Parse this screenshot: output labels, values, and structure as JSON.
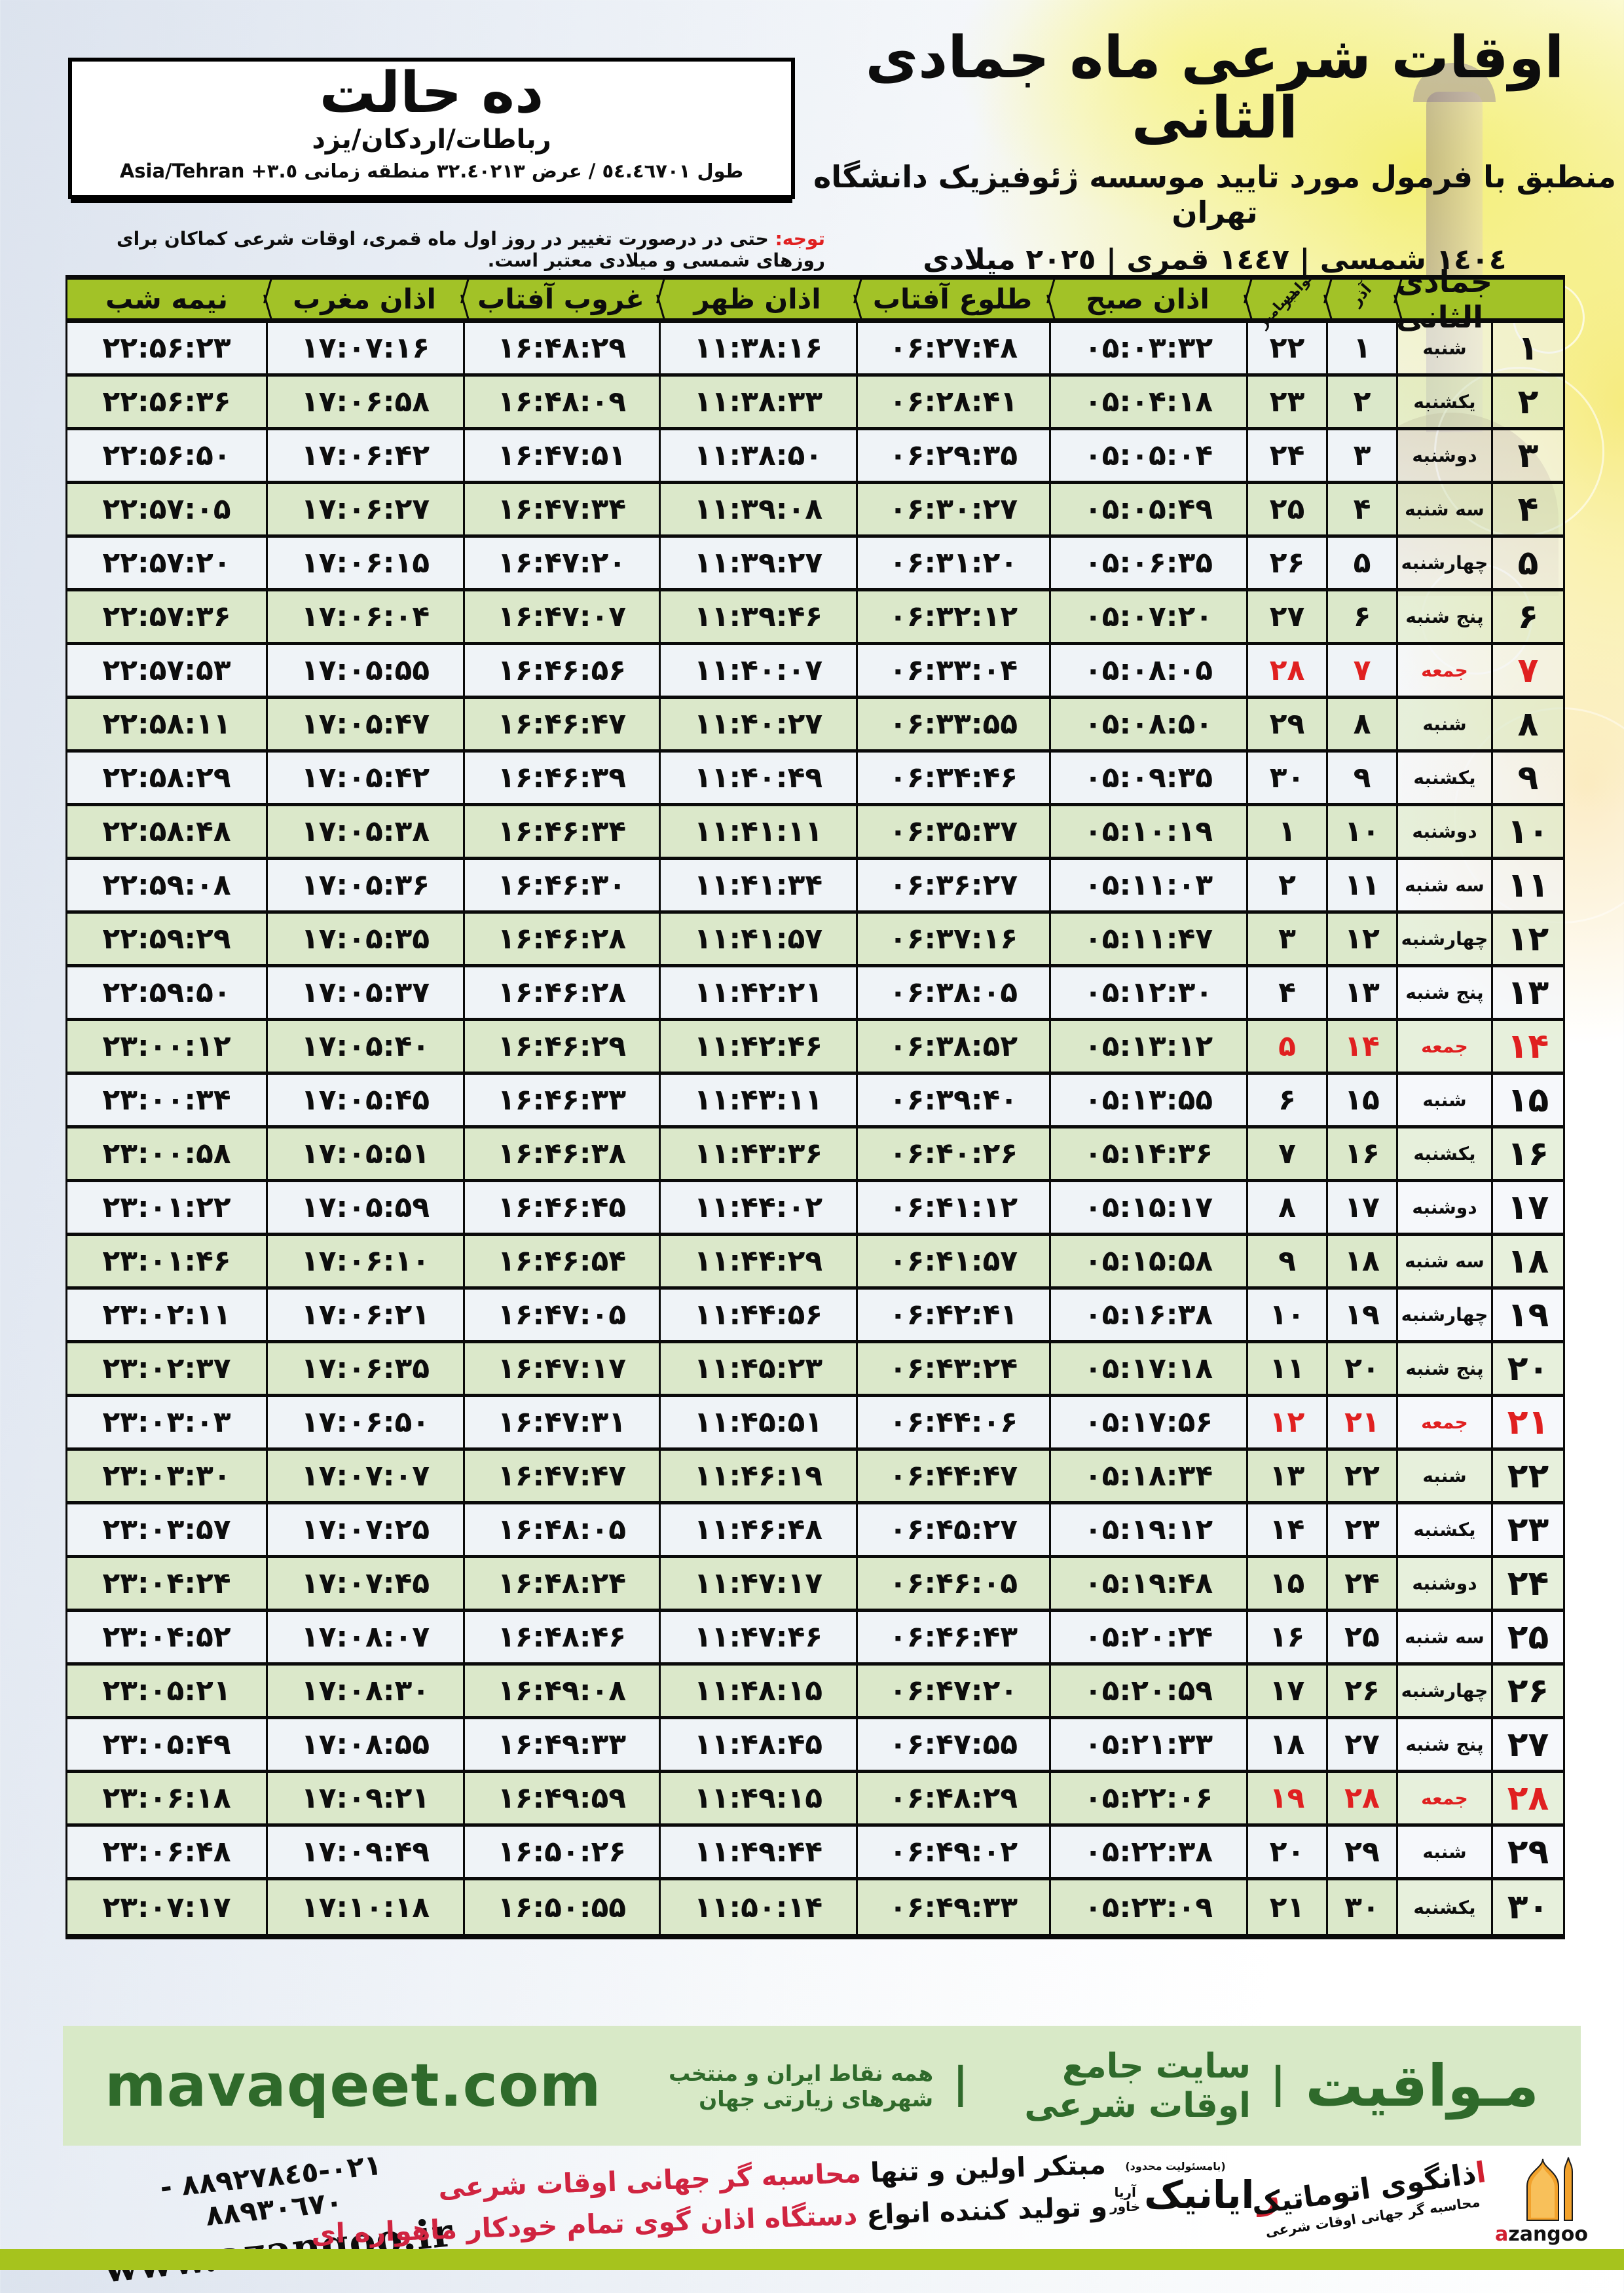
{
  "title_block": {
    "line1": "اوقات شرعی ماه جمادی الثانی",
    "line2": "منطبق با فرمول مورد تایید موسسه ژئوفیزیک دانشگاه تهران",
    "line3": "١٤٠٤ شمسی | ١٤٤٧ قمری | ٢٠٢٥ میلادی"
  },
  "info_box": {
    "title": "ده حالت",
    "locations": "رباطات/اردکان/یزد",
    "coords_fa": "طول ٥٤.٤٦٧٠١ / عرض ٣٢.٤٠٢١٣ منطقه زمانی",
    "coords_tz": "Asia/Tehran +٣.٥"
  },
  "note": {
    "label": "توجه:",
    "body": " حتی در درصورت تغییر در روز اول ماه قمری، اوقات شرعی کماکان برای روزهای شمسی و میلادی معتبر است."
  },
  "table": {
    "headers": {
      "midnight": "نیمه شب",
      "maghrib": "اذان مغرب",
      "sunset": "غروب آفتاب",
      "noon": "اذان ظهر",
      "sunrise": "طلوع آفتاب",
      "fajr": "اذان صبح",
      "gregorian_top": "نوامبر",
      "gregorian_bottom": "دسامبر",
      "azar": "آذر",
      "month": "جمادی الثانی"
    },
    "rows": [
      {
        "day": 1,
        "weekday": "شنبه",
        "gregorian": 22,
        "azar": 1,
        "friday": false,
        "fajr": "05:03:32",
        "sunrise": "06:27:48",
        "noon": "11:38:16",
        "sunset": "16:48:29",
        "maghrib": "17:07:16",
        "midnight": "22:56:23"
      },
      {
        "day": 2,
        "weekday": "یکشنبه",
        "gregorian": 23,
        "azar": 2,
        "friday": false,
        "fajr": "05:04:18",
        "sunrise": "06:28:41",
        "noon": "11:38:33",
        "sunset": "16:48:09",
        "maghrib": "17:06:58",
        "midnight": "22:56:36"
      },
      {
        "day": 3,
        "weekday": "دوشنبه",
        "gregorian": 24,
        "azar": 3,
        "friday": false,
        "fajr": "05:05:04",
        "sunrise": "06:29:35",
        "noon": "11:38:50",
        "sunset": "16:47:51",
        "maghrib": "17:06:42",
        "midnight": "22:56:50"
      },
      {
        "day": 4,
        "weekday": "سه شنبه",
        "gregorian": 25,
        "azar": 4,
        "friday": false,
        "fajr": "05:05:49",
        "sunrise": "06:30:27",
        "noon": "11:39:08",
        "sunset": "16:47:34",
        "maghrib": "17:06:27",
        "midnight": "22:57:05"
      },
      {
        "day": 5,
        "weekday": "چهارشنبه",
        "gregorian": 26,
        "azar": 5,
        "friday": false,
        "fajr": "05:06:35",
        "sunrise": "06:31:20",
        "noon": "11:39:27",
        "sunset": "16:47:20",
        "maghrib": "17:06:15",
        "midnight": "22:57:20"
      },
      {
        "day": 6,
        "weekday": "پنج شنبه",
        "gregorian": 27,
        "azar": 6,
        "friday": false,
        "fajr": "05:07:20",
        "sunrise": "06:32:12",
        "noon": "11:39:46",
        "sunset": "16:47:07",
        "maghrib": "17:06:04",
        "midnight": "22:57:36"
      },
      {
        "day": 7,
        "weekday": "جمعه",
        "gregorian": 28,
        "azar": 7,
        "friday": true,
        "fajr": "05:08:05",
        "sunrise": "06:33:04",
        "noon": "11:40:07",
        "sunset": "16:46:56",
        "maghrib": "17:05:55",
        "midnight": "22:57:53"
      },
      {
        "day": 8,
        "weekday": "شنبه",
        "gregorian": 29,
        "azar": 8,
        "friday": false,
        "fajr": "05:08:50",
        "sunrise": "06:33:55",
        "noon": "11:40:27",
        "sunset": "16:46:47",
        "maghrib": "17:05:47",
        "midnight": "22:58:11"
      },
      {
        "day": 9,
        "weekday": "یکشنبه",
        "gregorian": 30,
        "azar": 9,
        "friday": false,
        "fajr": "05:09:35",
        "sunrise": "06:34:46",
        "noon": "11:40:49",
        "sunset": "16:46:39",
        "maghrib": "17:05:42",
        "midnight": "22:58:29"
      },
      {
        "day": 10,
        "weekday": "دوشنبه",
        "gregorian": 1,
        "azar": 10,
        "friday": false,
        "fajr": "05:10:19",
        "sunrise": "06:35:37",
        "noon": "11:41:11",
        "sunset": "16:46:34",
        "maghrib": "17:05:38",
        "midnight": "22:58:48"
      },
      {
        "day": 11,
        "weekday": "سه شنبه",
        "gregorian": 2,
        "azar": 11,
        "friday": false,
        "fajr": "05:11:03",
        "sunrise": "06:36:27",
        "noon": "11:41:34",
        "sunset": "16:46:30",
        "maghrib": "17:05:36",
        "midnight": "22:59:08"
      },
      {
        "day": 12,
        "weekday": "چهارشنبه",
        "gregorian": 3,
        "azar": 12,
        "friday": false,
        "fajr": "05:11:47",
        "sunrise": "06:37:16",
        "noon": "11:41:57",
        "sunset": "16:46:28",
        "maghrib": "17:05:35",
        "midnight": "22:59:29"
      },
      {
        "day": 13,
        "weekday": "پنج شنبه",
        "gregorian": 4,
        "azar": 13,
        "friday": false,
        "fajr": "05:12:30",
        "sunrise": "06:38:05",
        "noon": "11:42:21",
        "sunset": "16:46:28",
        "maghrib": "17:05:37",
        "midnight": "22:59:50"
      },
      {
        "day": 14,
        "weekday": "جمعه",
        "gregorian": 5,
        "azar": 14,
        "friday": true,
        "fajr": "05:13:12",
        "sunrise": "06:38:52",
        "noon": "11:42:46",
        "sunset": "16:46:29",
        "maghrib": "17:05:40",
        "midnight": "23:00:12"
      },
      {
        "day": 15,
        "weekday": "شنبه",
        "gregorian": 6,
        "azar": 15,
        "friday": false,
        "fajr": "05:13:55",
        "sunrise": "06:39:40",
        "noon": "11:43:11",
        "sunset": "16:46:33",
        "maghrib": "17:05:45",
        "midnight": "23:00:34"
      },
      {
        "day": 16,
        "weekday": "یکشنبه",
        "gregorian": 7,
        "azar": 16,
        "friday": false,
        "fajr": "05:14:36",
        "sunrise": "06:40:26",
        "noon": "11:43:36",
        "sunset": "16:46:38",
        "maghrib": "17:05:51",
        "midnight": "23:00:58"
      },
      {
        "day": 17,
        "weekday": "دوشنبه",
        "gregorian": 8,
        "azar": 17,
        "friday": false,
        "fajr": "05:15:17",
        "sunrise": "06:41:12",
        "noon": "11:44:02",
        "sunset": "16:46:45",
        "maghrib": "17:05:59",
        "midnight": "23:01:22"
      },
      {
        "day": 18,
        "weekday": "سه شنبه",
        "gregorian": 9,
        "azar": 18,
        "friday": false,
        "fajr": "05:15:58",
        "sunrise": "06:41:57",
        "noon": "11:44:29",
        "sunset": "16:46:54",
        "maghrib": "17:06:10",
        "midnight": "23:01:46"
      },
      {
        "day": 19,
        "weekday": "چهارشنبه",
        "gregorian": 10,
        "azar": 19,
        "friday": false,
        "fajr": "05:16:38",
        "sunrise": "06:42:41",
        "noon": "11:44:56",
        "sunset": "16:47:05",
        "maghrib": "17:06:21",
        "midnight": "23:02:11"
      },
      {
        "day": 20,
        "weekday": "پنج شنبه",
        "gregorian": 11,
        "azar": 20,
        "friday": false,
        "fajr": "05:17:18",
        "sunrise": "06:43:24",
        "noon": "11:45:23",
        "sunset": "16:47:17",
        "maghrib": "17:06:35",
        "midnight": "23:02:37"
      },
      {
        "day": 21,
        "weekday": "جمعه",
        "gregorian": 12,
        "azar": 21,
        "friday": true,
        "fajr": "05:17:56",
        "sunrise": "06:44:06",
        "noon": "11:45:51",
        "sunset": "16:47:31",
        "maghrib": "17:06:50",
        "midnight": "23:03:03"
      },
      {
        "day": 22,
        "weekday": "شنبه",
        "gregorian": 13,
        "azar": 22,
        "friday": false,
        "fajr": "05:18:34",
        "sunrise": "06:44:47",
        "noon": "11:46:19",
        "sunset": "16:47:47",
        "maghrib": "17:07:07",
        "midnight": "23:03:30"
      },
      {
        "day": 23,
        "weekday": "یکشنبه",
        "gregorian": 14,
        "azar": 23,
        "friday": false,
        "fajr": "05:19:12",
        "sunrise": "06:45:27",
        "noon": "11:46:48",
        "sunset": "16:48:05",
        "maghrib": "17:07:25",
        "midnight": "23:03:57"
      },
      {
        "day": 24,
        "weekday": "دوشنبه",
        "gregorian": 15,
        "azar": 24,
        "friday": false,
        "fajr": "05:19:48",
        "sunrise": "06:46:05",
        "noon": "11:47:17",
        "sunset": "16:48:24",
        "maghrib": "17:07:45",
        "midnight": "23:04:24"
      },
      {
        "day": 25,
        "weekday": "سه شنبه",
        "gregorian": 16,
        "azar": 25,
        "friday": false,
        "fajr": "05:20:24",
        "sunrise": "06:46:43",
        "noon": "11:47:46",
        "sunset": "16:48:46",
        "maghrib": "17:08:07",
        "midnight": "23:04:52"
      },
      {
        "day": 26,
        "weekday": "چهارشنبه",
        "gregorian": 17,
        "azar": 26,
        "friday": false,
        "fajr": "05:20:59",
        "sunrise": "06:47:20",
        "noon": "11:48:15",
        "sunset": "16:49:08",
        "maghrib": "17:08:30",
        "midnight": "23:05:21"
      },
      {
        "day": 27,
        "weekday": "پنج شنبه",
        "gregorian": 18,
        "azar": 27,
        "friday": false,
        "fajr": "05:21:33",
        "sunrise": "06:47:55",
        "noon": "11:48:45",
        "sunset": "16:49:33",
        "maghrib": "17:08:55",
        "midnight": "23:05:49"
      },
      {
        "day": 28,
        "weekday": "جمعه",
        "gregorian": 19,
        "azar": 28,
        "friday": true,
        "fajr": "05:22:06",
        "sunrise": "06:48:29",
        "noon": "11:49:15",
        "sunset": "16:49:59",
        "maghrib": "17:09:21",
        "midnight": "23:06:18"
      },
      {
        "day": 29,
        "weekday": "شنبه",
        "gregorian": 20,
        "azar": 29,
        "friday": false,
        "fajr": "05:22:38",
        "sunrise": "06:49:02",
        "noon": "11:49:44",
        "sunset": "16:50:26",
        "maghrib": "17:09:49",
        "midnight": "23:06:48"
      },
      {
        "day": 30,
        "weekday": "یکشنبه",
        "gregorian": 21,
        "azar": 30,
        "friday": false,
        "fajr": "05:23:09",
        "sunrise": "06:49:33",
        "noon": "11:50:14",
        "sunset": "16:50:55",
        "maghrib": "17:10:18",
        "midnight": "23:07:17"
      }
    ]
  },
  "footer_band": {
    "site_name": "مـواقیت",
    "sep": "|",
    "tagline1": "سایت جامع اوقات شرعی",
    "tagline2": "همه نقاط ایران و منتخب شهرهای زیارتی جهان",
    "domain": "mavaqeet.com"
  },
  "footer_bottom": {
    "phones": "٠٢١-٨٨٩٢٧٨٤٥ - ٨٨٩٣٠٦٧٠",
    "website": "www.azangoo.ir",
    "line1_black": "مبتکر اولین و تنها ",
    "line1_red": "محاسبه گر جهانی اوقات شرعی",
    "line2_black": "و تولید کننده انواع ",
    "line2_red": "دستگاه اذان گوی تمام خودکار ماهواره ای",
    "rayanik_llc": "(بامسئولیت محدود)",
    "rayanik_first": "ر",
    "rayanik_rest": "ایانیک",
    "rayanik_sub_top": "آریا",
    "rayanik_sub_bottom": "خاور",
    "azangoo_fa_first": "ا",
    "azangoo_fa_rest": "ذانگوی اتوماتیک",
    "azangoo_en_first": "a",
    "azangoo_en_rest": "zangoo",
    "azangoo_tagline": "محاسبه گر جهانی اوقات شرعی"
  },
  "colors": {
    "header_green": "#a2c227",
    "row_green": "#dbe8ca",
    "row_white": "#eff3f7",
    "red": "#e02020",
    "band_bg": "#d8e9c7",
    "band_text": "#2f6a2b",
    "bottom_bar": "#a6c31d",
    "orange": "#f29c1f"
  }
}
